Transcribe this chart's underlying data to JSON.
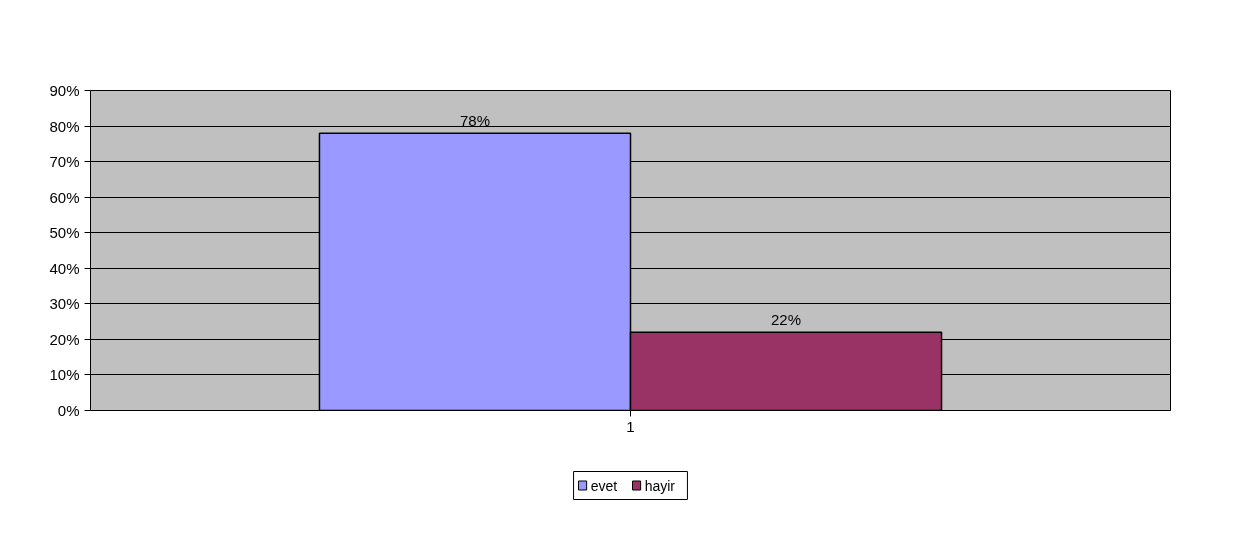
{
  "chart_data": {
    "type": "bar",
    "categories": [
      "1"
    ],
    "series": [
      {
        "name": "evet",
        "color": "#9999ff",
        "values": [
          78
        ],
        "value_labels": [
          "78%"
        ]
      },
      {
        "name": "hayir",
        "color": "#993366",
        "values": [
          22
        ],
        "value_labels": [
          "22%"
        ]
      }
    ],
    "ylim": [
      0,
      90
    ],
    "yticks": [
      {
        "value": 0,
        "label": "0%"
      },
      {
        "value": 10,
        "label": "10%"
      },
      {
        "value": 20,
        "label": "20%"
      },
      {
        "value": 30,
        "label": "30%"
      },
      {
        "value": 40,
        "label": "40%"
      },
      {
        "value": 50,
        "label": "50%"
      },
      {
        "value": 60,
        "label": "60%"
      },
      {
        "value": 70,
        "label": "70%"
      },
      {
        "value": 80,
        "label": "80%"
      },
      {
        "value": 90,
        "label": "90%"
      }
    ],
    "grid": "y",
    "legend": "bottom"
  }
}
